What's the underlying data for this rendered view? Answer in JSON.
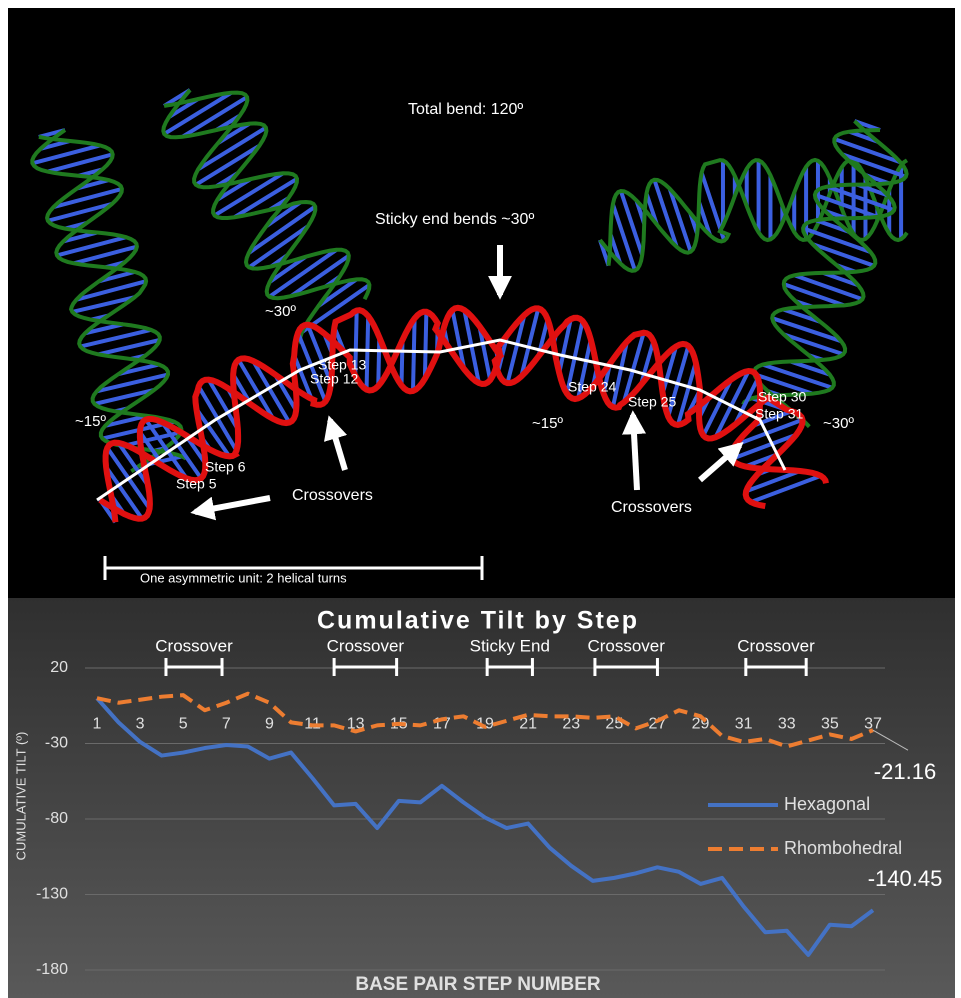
{
  "figure": {
    "annotations": [
      {
        "text": "Total bend: 120º"
      },
      {
        "text": "Sticky end bends ~30º"
      },
      {
        "text": "~30º"
      },
      {
        "text": "Step 13"
      },
      {
        "text": "Step 12"
      },
      {
        "text": "~15º"
      },
      {
        "text": "Step 6"
      },
      {
        "text": "Step 5"
      },
      {
        "text": "Crossovers"
      },
      {
        "text": "Step 24"
      },
      {
        "text": "Step 25"
      },
      {
        "text": "~15º"
      },
      {
        "text": "Step 30"
      },
      {
        "text": "Step 31"
      },
      {
        "text": "~30º"
      },
      {
        "text": "Crossovers"
      },
      {
        "text": "One asymmetric unit: 2 helical turns"
      }
    ]
  },
  "chart_data": {
    "type": "line",
    "title": "Cumulative Tilt by Step",
    "x_label": "BASE PAIR STEP NUMBER",
    "y_label": "CUMULATIVE TILT (º)",
    "x": [
      1,
      2,
      3,
      4,
      5,
      6,
      7,
      8,
      9,
      10,
      11,
      12,
      13,
      14,
      15,
      16,
      17,
      18,
      19,
      20,
      21,
      22,
      23,
      24,
      25,
      26,
      27,
      28,
      29,
      30,
      31,
      32,
      33,
      34,
      35,
      36,
      37
    ],
    "series": [
      {
        "name": "Hexagonal",
        "color": "#4472c4",
        "values": [
          0,
          -16,
          -29,
          -38,
          -36,
          -33,
          -31,
          -32,
          -40,
          -36,
          -53,
          -71,
          -70,
          -86,
          -68,
          -69,
          -58,
          -69,
          -79,
          -86,
          -83,
          -99,
          -111,
          -121,
          -119,
          -116,
          -112,
          -115,
          -123,
          -119,
          -138,
          -155,
          -154,
          -170,
          -150,
          -151,
          -140.45
        ]
      },
      {
        "name": "Rhombohedral",
        "color": "#ed7d31",
        "values": [
          0,
          -3,
          -1,
          1,
          2,
          -8,
          -3,
          3,
          -3,
          -16,
          -18,
          -18,
          -22,
          -18,
          -17,
          -18,
          -14,
          -12,
          -19,
          -15,
          -11,
          -12,
          -12,
          -13,
          -12,
          -20,
          -15,
          -8,
          -12,
          -25,
          -29,
          -27,
          -32,
          -28,
          -24,
          -27,
          -21.16
        ]
      }
    ],
    "xlim": [
      1,
      37
    ],
    "xticks": [
      1,
      3,
      5,
      7,
      9,
      11,
      13,
      15,
      17,
      19,
      21,
      23,
      25,
      27,
      29,
      31,
      33,
      35,
      37
    ],
    "ylim": [
      -180,
      20
    ],
    "yticks": [
      -180,
      -130,
      -80,
      -30,
      20
    ],
    "grid": true,
    "legend": "right",
    "regions": [
      {
        "text": "Crossover",
        "range": [
          4.2,
          6.8
        ]
      },
      {
        "text": "Crossover",
        "range": [
          12,
          14.9
        ]
      },
      {
        "text": "Sticky End",
        "range": [
          19.1,
          21.2
        ]
      },
      {
        "text": "Crossover",
        "range": [
          24.1,
          27
        ]
      },
      {
        "text": "Crossover",
        "range": [
          31.1,
          33.9
        ]
      }
    ]
  }
}
